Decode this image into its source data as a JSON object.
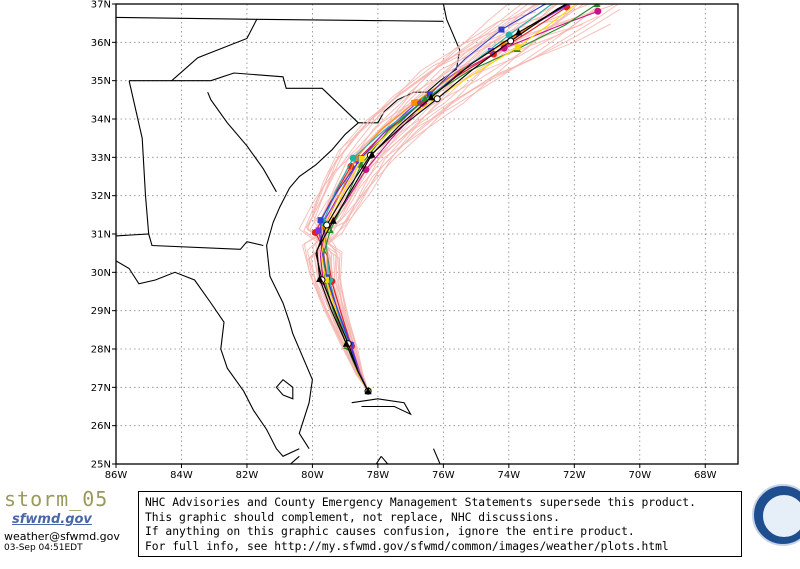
{
  "map": {
    "lat_range": [
      25,
      37
    ],
    "lon_range": [
      -86,
      -67
    ],
    "lat_ticks": [
      "25N",
      "26N",
      "27N",
      "28N",
      "29N",
      "30N",
      "31N",
      "32N",
      "33N",
      "34N",
      "35N",
      "36N",
      "37N"
    ],
    "lon_ticks": [
      "86W",
      "84W",
      "82W",
      "80W",
      "78W",
      "76W",
      "74W",
      "72W",
      "70W",
      "68W"
    ],
    "gridlines": "dotted",
    "colors": {
      "land_outline": "#000000",
      "ocean": "#ffffff",
      "frame": "#000000",
      "grid": "#888888"
    }
  },
  "tracks": {
    "ensemble_color": "#f4b6b0",
    "ensemble_count": 28,
    "highlighted": [
      {
        "color": "#e02020",
        "marker": "circle"
      },
      {
        "color": "#8a2be2",
        "marker": "square"
      },
      {
        "color": "#ff8c00",
        "marker": "square"
      },
      {
        "color": "#20b2aa",
        "marker": "circle"
      },
      {
        "color": "#3040d0",
        "marker": "square"
      },
      {
        "color": "#c71585",
        "marker": "circle"
      },
      {
        "color": "#228b22",
        "marker": "triangle"
      },
      {
        "color": "#ffd700",
        "marker": "square"
      },
      {
        "color": "#000000",
        "marker": "circle"
      },
      {
        "color": "#000000",
        "marker": "triangle"
      }
    ]
  },
  "footer": {
    "storm_name": "storm_05",
    "org_label": "sfwmd.gov",
    "email": "weather@sfwmd.gov",
    "timestamp": "03-Sep 04:51EDT",
    "notice_lines": [
      "NHC Advisories and County Emergency Management Statements supersede this product.",
      "This graphic should complement, not replace, NHC discussions.",
      "If anything on this graphic causes confusion, ignore the entire product.",
      "For full info, see  http://my.sfwmd.gov/sfwmd/common/images/weather/plots.html"
    ]
  },
  "logo": {
    "name": "sfwmd-seal"
  }
}
